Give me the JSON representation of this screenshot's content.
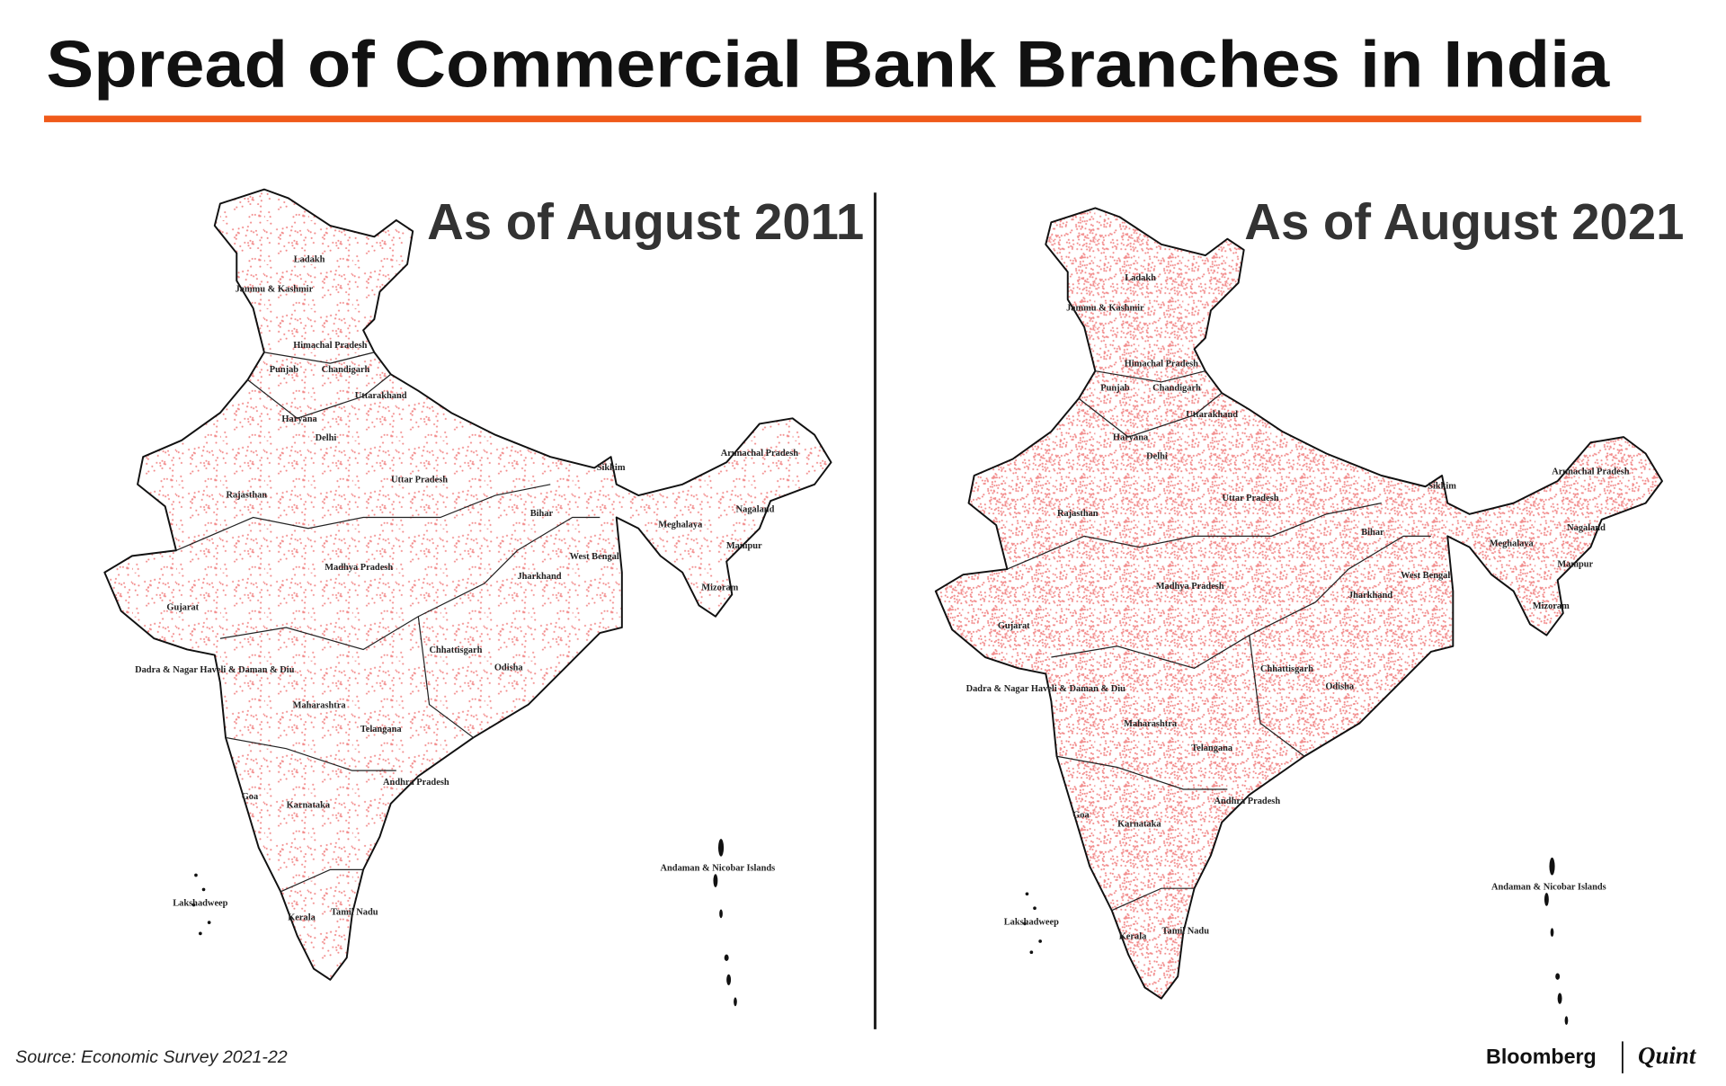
{
  "header": {
    "title": "Spread of Commercial Bank Branches in India"
  },
  "maps": [
    {
      "title": "As of August 2011",
      "labels": [
        "Ladakh",
        "Jammu & Kashmir",
        "Himachal Pradesh",
        "Punjab",
        "Chandigarh",
        "Uttarakhand",
        "Haryana",
        "Delhi",
        "Rajasthan",
        "Uttar Pradesh",
        "Sikkim",
        "Arunachal Pradesh",
        "Nagaland",
        "Meghalaya",
        "Bihar",
        "Manipur",
        "West Bengal",
        "Mizoram",
        "Jharkhand",
        "Madhya Pradesh",
        "Gujarat",
        "Chhattisgarh",
        "Odisha",
        "Dadra & Nagar Haveli & Daman & Diu",
        "Maharashtra",
        "Telangana",
        "Andhra Pradesh",
        "Goa",
        "Karnataka",
        "Andaman & Nicobar Islands",
        "Lakshadweep",
        "Kerala",
        "Tamil Nadu"
      ]
    },
    {
      "title": "As of August 2021",
      "labels": [
        "Ladakh",
        "Jammu & Kashmir",
        "Himachal Pradesh",
        "Punjab",
        "Chandigarh",
        "Uttarakhand",
        "Haryana",
        "Delhi",
        "Rajasthan",
        "Uttar Pradesh",
        "Sikkim",
        "Arunachal Pradesh",
        "Nagaland",
        "Meghalaya",
        "Bihar",
        "Manipur",
        "West Bengal",
        "Mizoram",
        "Jharkhand",
        "Madhya Pradesh",
        "Gujarat",
        "Chhattisgarh",
        "Odisha",
        "Dadra & Nagar Haveli & Daman & Diu",
        "Maharashtra",
        "Telangana",
        "Andhra Pradesh",
        "Goa",
        "Karnataka",
        "Andaman & Nicobar Islands",
        "Lakshadweep",
        "Kerala",
        "Tamil Nadu"
      ]
    }
  ],
  "footer": {
    "source": "Source: Economic Survey 2021-22",
    "logo": [
      "Bloomberg",
      "Quint"
    ]
  }
}
